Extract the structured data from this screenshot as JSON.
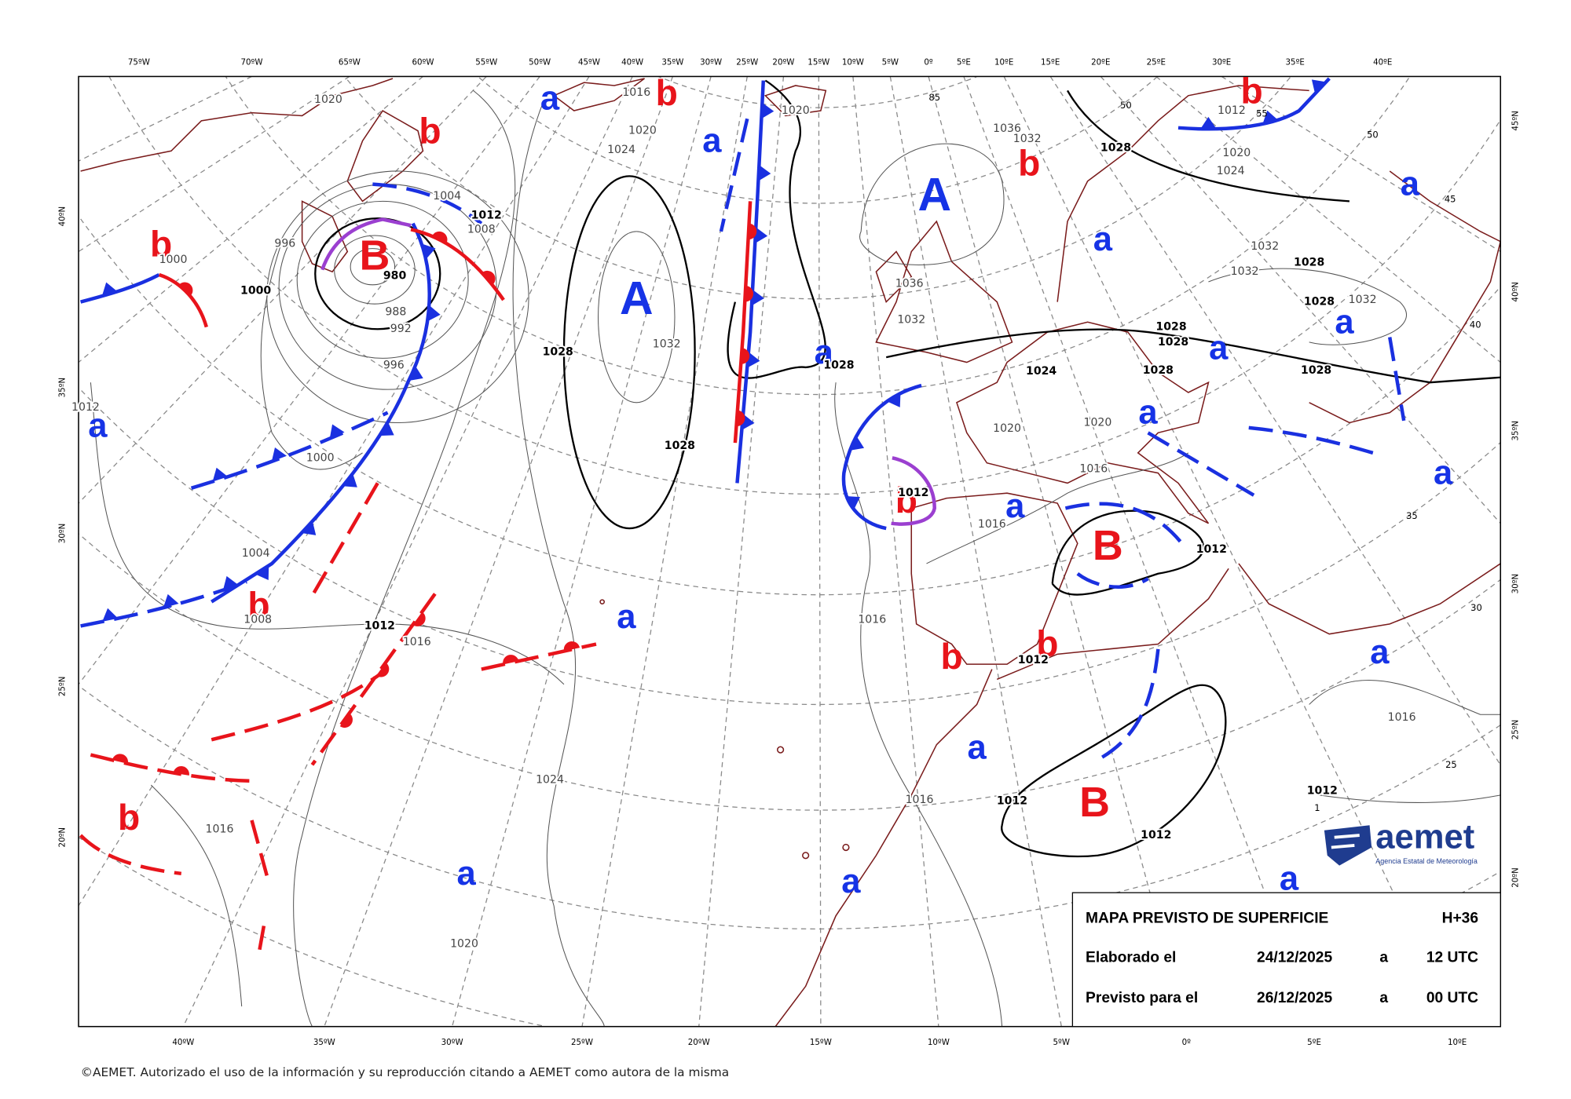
{
  "map": {
    "top_longitudes": [
      "75ºW",
      "70ºW",
      "65ºW",
      "60ºW",
      "55ºW",
      "50ºW",
      "45ºW",
      "40ºW",
      "35ºW",
      "30ºW",
      "25ºW",
      "20ºW",
      "15ºW",
      "10ºW",
      "5ºW",
      "0º",
      "5ºE",
      "10ºE",
      "15ºE",
      "20ºE",
      "25ºE",
      "30ºE",
      "35ºE",
      "40ºE"
    ],
    "bottom_longitudes": [
      "40ºW",
      "35ºW",
      "30ºW",
      "25ºW",
      "20ºW",
      "15ºW",
      "10ºW",
      "5ºW",
      "0º",
      "5ºE",
      "10ºE"
    ],
    "left_latitudes": [
      "40ºN",
      "35ºN",
      "30ºN",
      "25ºN",
      "20ºN"
    ],
    "right_latitudes": [
      "45ºN",
      "40ºN",
      "35ºN",
      "30ºN",
      "25ºN",
      "20ºN"
    ],
    "pressure_systems": [
      "A",
      "A",
      "B",
      "B",
      "B",
      "b",
      "b",
      "b",
      "b",
      "b",
      "b",
      "b",
      "b",
      "b",
      "b",
      "a",
      "a",
      "a",
      "a",
      "a",
      "a",
      "a",
      "a",
      "a",
      "a",
      "a",
      "a",
      "a",
      "a",
      "a",
      "a",
      "a"
    ],
    "isobar_labels": [
      "1020",
      "1020",
      "1024",
      "1020",
      "1016",
      "996",
      "1000",
      "980",
      "988",
      "992",
      "996",
      "1004",
      "1008",
      "1012",
      "1028",
      "1032",
      "1028",
      "1028",
      "1000",
      "1004",
      "1008",
      "1012",
      "1016",
      "1012",
      "1024",
      "1016",
      "1020",
      "1016",
      "1016",
      "1012",
      "1012",
      "1012",
      "1012",
      "1016",
      "1012",
      "1016",
      "1020",
      "1020",
      "1024",
      "1028",
      "1028",
      "1028",
      "1028",
      "1028",
      "1032",
      "1032",
      "1028",
      "1032",
      "1028",
      "1036",
      "1032",
      "1020",
      "1024",
      "1012",
      "1000",
      "1012",
      "1016",
      "1032",
      "1036"
    ],
    "grid_labels": [
      "85",
      "50",
      "55",
      "50",
      "45",
      "40",
      "35",
      "30",
      "25",
      "1"
    ]
  },
  "info_box": {
    "title": "MAPA PREVISTO DE SUPERFICIE",
    "lead_time": "H+36",
    "rows": [
      [
        "Elaborado el",
        "24/12/2025",
        "a",
        "12 UTC"
      ],
      [
        "Previsto para el",
        "26/12/2025",
        "a",
        "00 UTC"
      ]
    ]
  },
  "logo": {
    "name": "aemet",
    "subtitle": "Agencia Estatal de Meteorología"
  },
  "copyright": "©AEMET. Autorizado el uso de la información y su reproducción citando a AEMET como autora de la misma"
}
